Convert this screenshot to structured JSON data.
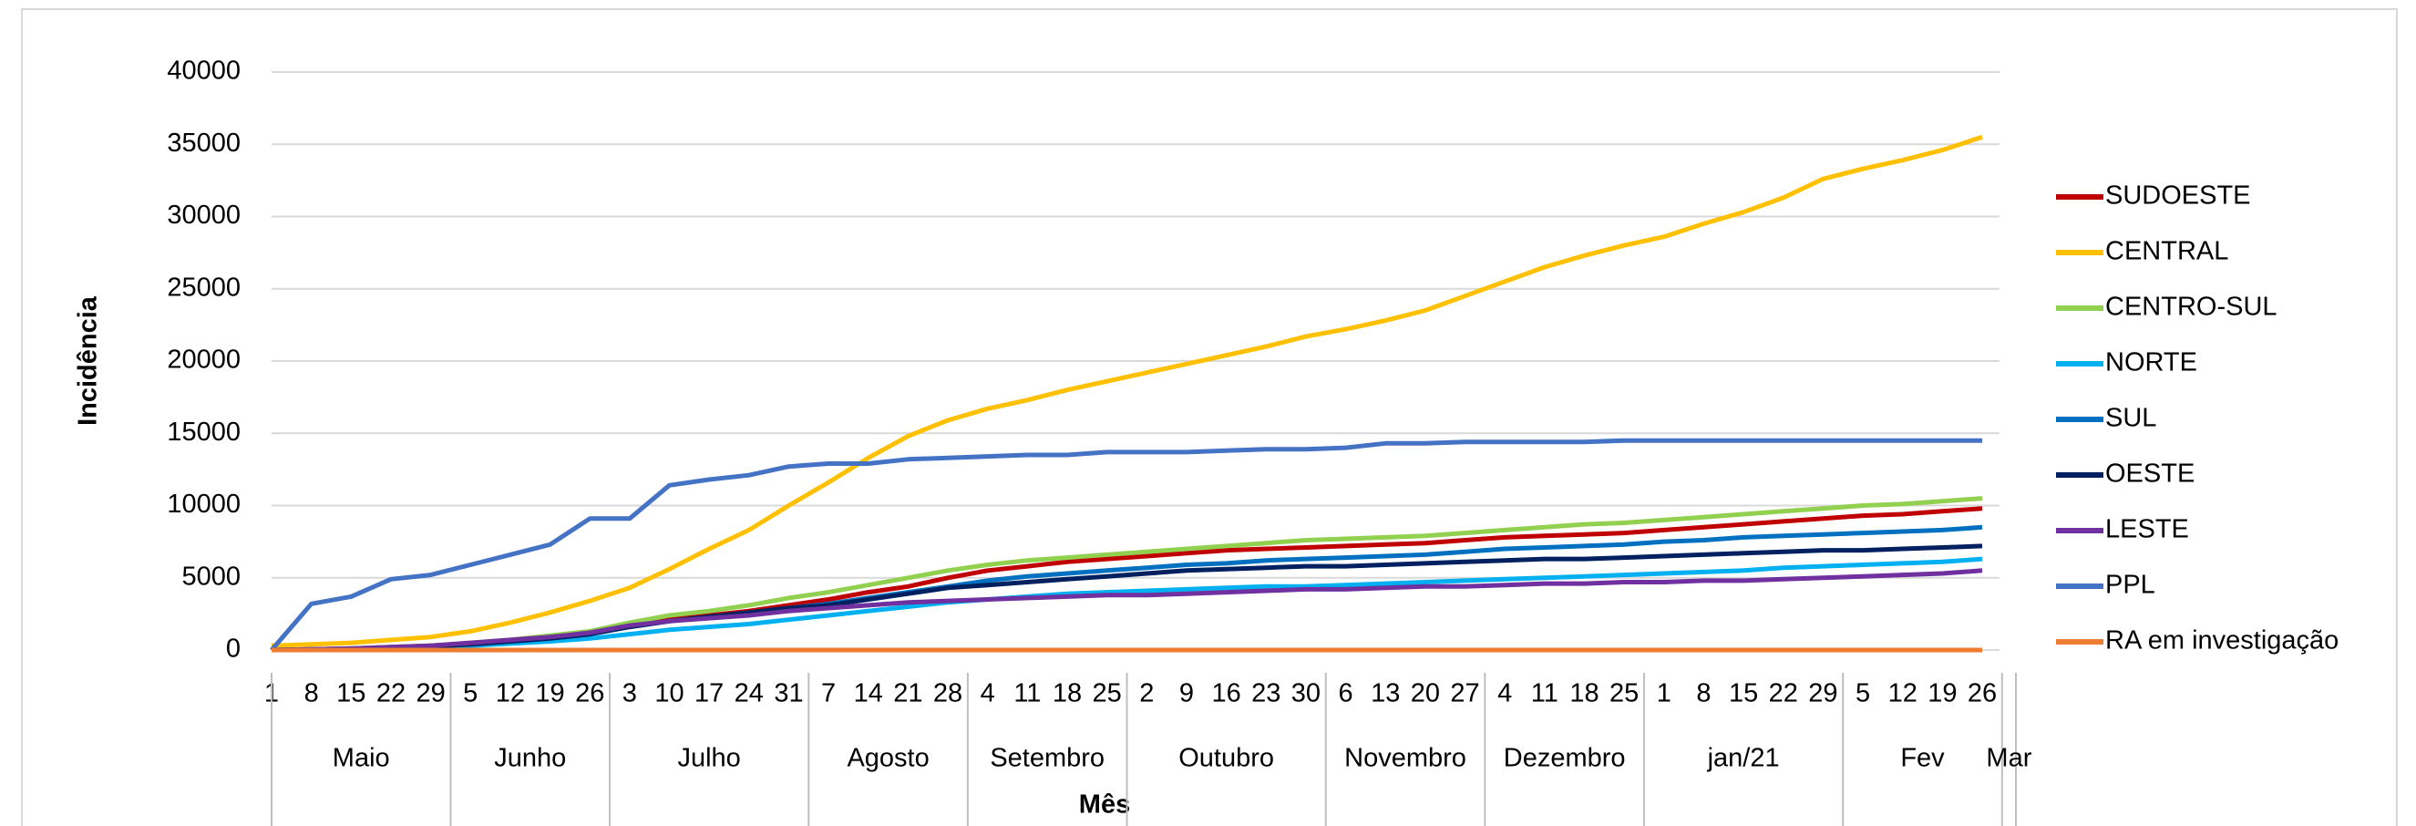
{
  "chart_data": {
    "type": "line",
    "x_label": "Mês",
    "y_label": "Incidência",
    "categories": [
      "1",
      "8",
      "15",
      "22",
      "29",
      "5",
      "12",
      "19",
      "26",
      "3",
      "10",
      "17",
      "24",
      "31",
      "7",
      "14",
      "21",
      "28",
      "4",
      "11",
      "18",
      "25",
      "2",
      "9",
      "16",
      "23",
      "30",
      "6",
      "13",
      "20",
      "27",
      "4",
      "11",
      "18",
      "25",
      "1",
      "8",
      "15",
      "22",
      "29",
      "5",
      "12",
      "19",
      "26"
    ],
    "months": [
      "Maio",
      "Junho",
      "Julho",
      "Agosto",
      "Setembro",
      "Outubro",
      "Novembro",
      "Dezembro",
      "jan/21",
      "Fev",
      "Mar"
    ],
    "ylim": [
      0,
      40000
    ],
    "yticks": [
      0,
      5000,
      10000,
      15000,
      20000,
      25000,
      30000,
      35000,
      40000
    ],
    "grid": true,
    "legend": "right",
    "series": [
      {
        "name": "SUDOESTE",
        "color": "#c00000",
        "values": [
          0,
          50,
          100,
          200,
          300,
          450,
          650,
          900,
          1200,
          1700,
          2100,
          2400,
          2700,
          3100,
          3500,
          4000,
          4400,
          5000,
          5500,
          5800,
          6100,
          6300,
          6500,
          6700,
          6900,
          7000,
          7100,
          7200,
          7300,
          7400,
          7600,
          7800,
          7900,
          8000,
          8100,
          8300,
          8500,
          8700,
          8900,
          9100,
          9300,
          9400,
          9600,
          9800
        ]
      },
      {
        "name": "CENTRAL",
        "color": "#ffc000",
        "values": [
          300,
          400,
          500,
          700,
          900,
          1300,
          1900,
          2600,
          3400,
          4300,
          5600,
          7000,
          8300,
          10000,
          11600,
          13300,
          14800,
          15900,
          16700,
          17300,
          18000,
          18600,
          19200,
          19800,
          20400,
          21000,
          21700,
          22200,
          22800,
          23500,
          24500,
          25500,
          26500,
          27300,
          28000,
          28600,
          29500,
          30300,
          31300,
          32600,
          33300,
          33900,
          34600,
          35500
        ]
      },
      {
        "name": "CENTRO-SUL",
        "color": "#92d050",
        "values": [
          0,
          50,
          100,
          200,
          300,
          500,
          700,
          1000,
          1300,
          1900,
          2400,
          2700,
          3100,
          3600,
          4000,
          4500,
          5000,
          5500,
          5900,
          6200,
          6400,
          6600,
          6800,
          7000,
          7200,
          7400,
          7600,
          7700,
          7800,
          7900,
          8100,
          8300,
          8500,
          8700,
          8800,
          9000,
          9200,
          9400,
          9600,
          9800,
          10000,
          10100,
          10300,
          10500
        ]
      },
      {
        "name": "NORTE",
        "color": "#00b0f0",
        "values": [
          0,
          20,
          50,
          100,
          200,
          300,
          450,
          600,
          800,
          1100,
          1400,
          1600,
          1800,
          2100,
          2400,
          2700,
          3000,
          3300,
          3500,
          3700,
          3900,
          4000,
          4100,
          4200,
          4300,
          4400,
          4400,
          4500,
          4600,
          4700,
          4800,
          4900,
          5000,
          5100,
          5200,
          5300,
          5400,
          5500,
          5700,
          5800,
          5900,
          6000,
          6100,
          6300
        ]
      },
      {
        "name": "SUL",
        "color": "#0070c0",
        "values": [
          0,
          40,
          80,
          150,
          250,
          400,
          600,
          800,
          1100,
          1600,
          2000,
          2300,
          2600,
          2900,
          3200,
          3600,
          4000,
          4400,
          4800,
          5100,
          5300,
          5500,
          5700,
          5900,
          6000,
          6200,
          6300,
          6400,
          6500,
          6600,
          6800,
          7000,
          7100,
          7200,
          7300,
          7500,
          7600,
          7800,
          7900,
          8000,
          8100,
          8200,
          8300,
          8500
        ]
      },
      {
        "name": "OESTE",
        "color": "#002060",
        "values": [
          0,
          40,
          80,
          150,
          250,
          400,
          600,
          800,
          1100,
          1600,
          2000,
          2300,
          2600,
          2900,
          3100,
          3500,
          3900,
          4300,
          4500,
          4700,
          4900,
          5100,
          5300,
          5500,
          5600,
          5700,
          5800,
          5800,
          5900,
          6000,
          6100,
          6200,
          6300,
          6300,
          6400,
          6500,
          6600,
          6700,
          6800,
          6900,
          6900,
          7000,
          7100,
          7200
        ]
      },
      {
        "name": "LESTE",
        "color": "#7030a0",
        "values": [
          0,
          50,
          100,
          200,
          300,
          500,
          700,
          900,
          1200,
          1700,
          2000,
          2200,
          2400,
          2700,
          2900,
          3100,
          3300,
          3400,
          3500,
          3600,
          3700,
          3800,
          3800,
          3900,
          4000,
          4100,
          4200,
          4200,
          4300,
          4400,
          4400,
          4500,
          4600,
          4600,
          4700,
          4700,
          4800,
          4800,
          4900,
          5000,
          5100,
          5200,
          5300,
          5500
        ]
      },
      {
        "name": "PPL",
        "color": "#4472c4",
        "values": [
          0,
          3200,
          3700,
          4900,
          5200,
          5900,
          6600,
          7300,
          9100,
          9100,
          11400,
          11800,
          12100,
          12700,
          12900,
          12900,
          13200,
          13300,
          13400,
          13500,
          13500,
          13700,
          13700,
          13700,
          13800,
          13900,
          13900,
          14000,
          14300,
          14300,
          14400,
          14400,
          14400,
          14400,
          14500,
          14500,
          14500,
          14500,
          14500,
          14500,
          14500,
          14500,
          14500,
          14500
        ]
      },
      {
        "name": "RA em investigação",
        "color": "#ed7d31",
        "values": [
          0,
          0,
          0,
          0,
          0,
          0,
          0,
          0,
          0,
          0,
          0,
          0,
          0,
          0,
          0,
          0,
          0,
          0,
          0,
          0,
          0,
          0,
          0,
          0,
          0,
          0,
          0,
          0,
          0,
          0,
          0,
          0,
          0,
          0,
          0,
          0,
          0,
          0,
          0,
          0,
          0,
          0,
          0,
          0
        ]
      }
    ]
  }
}
